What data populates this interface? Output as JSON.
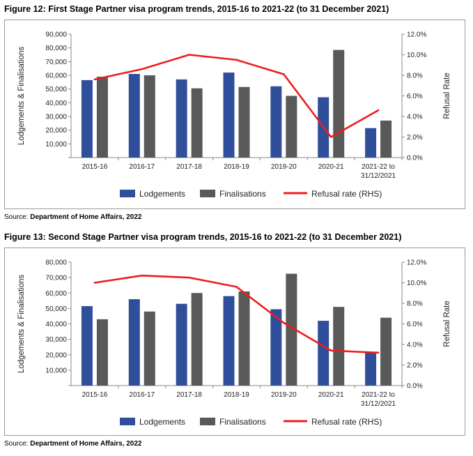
{
  "charts": [
    {
      "title": "Figure 12: First Stage Partner visa program trends, 2015-16 to 2021-22 (to 31 December 2021)",
      "source_label": "Source: ",
      "source_name": "Department of Home Affairs, 2022"
    },
    {
      "title": "Figure 13: Second Stage Partner visa program trends, 2015-16 to 2021-22 (to 31 December 2021)",
      "source_label": "Source: ",
      "source_name": "Department of Home Affairs, 2022"
    }
  ],
  "colors": {
    "lodgements": "#2f4f9b",
    "finalisations": "#595959",
    "refusal": "#ee1c1c",
    "grid": "#d9d9d9"
  },
  "chart_data": [
    {
      "type": "bar",
      "categories": [
        [
          "2015-16"
        ],
        [
          "2016-17"
        ],
        [
          "2017-18"
        ],
        [
          "2018-19"
        ],
        [
          "2019-20"
        ],
        [
          "2020-21"
        ],
        [
          "2021-22 to",
          "31/12/2021"
        ]
      ],
      "series": [
        {
          "name": "Lodgements",
          "type": "bar",
          "axis": "left",
          "values": [
            56500,
            61000,
            57000,
            62000,
            52000,
            44000,
            21500
          ]
        },
        {
          "name": "Finalisations",
          "type": "bar",
          "axis": "left",
          "values": [
            59000,
            60000,
            50500,
            51500,
            45000,
            78500,
            27000
          ]
        },
        {
          "name": "Refusal rate (RHS)",
          "type": "line",
          "axis": "right",
          "values": [
            7.6,
            8.6,
            10.0,
            9.5,
            8.1,
            2.0,
            4.6
          ]
        }
      ],
      "ylabel": "Lodgements & Finalisations",
      "y2label": "Refusal Rate",
      "ylim": [
        0,
        90000
      ],
      "yticks": [
        "",
        "10,000",
        "20,000",
        "30,000",
        "40,000",
        "50,000",
        "60,000",
        "70,000",
        "80,000",
        "90,000"
      ],
      "y2lim": [
        0,
        12
      ],
      "y2ticks": [
        "0.0%",
        "2.0%",
        "4.0%",
        "6.0%",
        "8.0%",
        "10.0%",
        "12.0%"
      ],
      "legend": [
        "Lodgements",
        "Finalisations",
        "Refusal rate (RHS)"
      ],
      "legend_position": "bottom",
      "grid": false
    },
    {
      "type": "bar",
      "categories": [
        [
          "2015-16"
        ],
        [
          "2016-17"
        ],
        [
          "2017-18"
        ],
        [
          "2018-19"
        ],
        [
          "2019-20"
        ],
        [
          "2020-21"
        ],
        [
          "2021-22 to",
          "31/12/2021"
        ]
      ],
      "series": [
        {
          "name": "Lodgements",
          "type": "bar",
          "axis": "left",
          "values": [
            51500,
            56000,
            53000,
            58000,
            49500,
            42000,
            21500
          ]
        },
        {
          "name": "Finalisations",
          "type": "bar",
          "axis": "left",
          "values": [
            43000,
            48000,
            60000,
            61000,
            72500,
            51000,
            44000
          ]
        },
        {
          "name": "Refusal rate (RHS)",
          "type": "line",
          "axis": "right",
          "values": [
            10.0,
            10.7,
            10.5,
            9.6,
            6.1,
            3.4,
            3.2
          ]
        }
      ],
      "ylabel": "Lodgements & Finalisations",
      "y2label": "Refusal Rate",
      "ylim": [
        0,
        80000
      ],
      "yticks": [
        "",
        "10,000",
        "20,000",
        "30,000",
        "40,000",
        "50,000",
        "60,000",
        "70,000",
        "80,000"
      ],
      "y2lim": [
        0,
        12
      ],
      "y2ticks": [
        "0.0%",
        "2.0%",
        "4.0%",
        "6.0%",
        "8.0%",
        "10.0%",
        "12.0%"
      ],
      "legend": [
        "Lodgements",
        "Finalisations",
        "Refusal rate (RHS)"
      ],
      "legend_position": "bottom",
      "grid": false
    }
  ]
}
